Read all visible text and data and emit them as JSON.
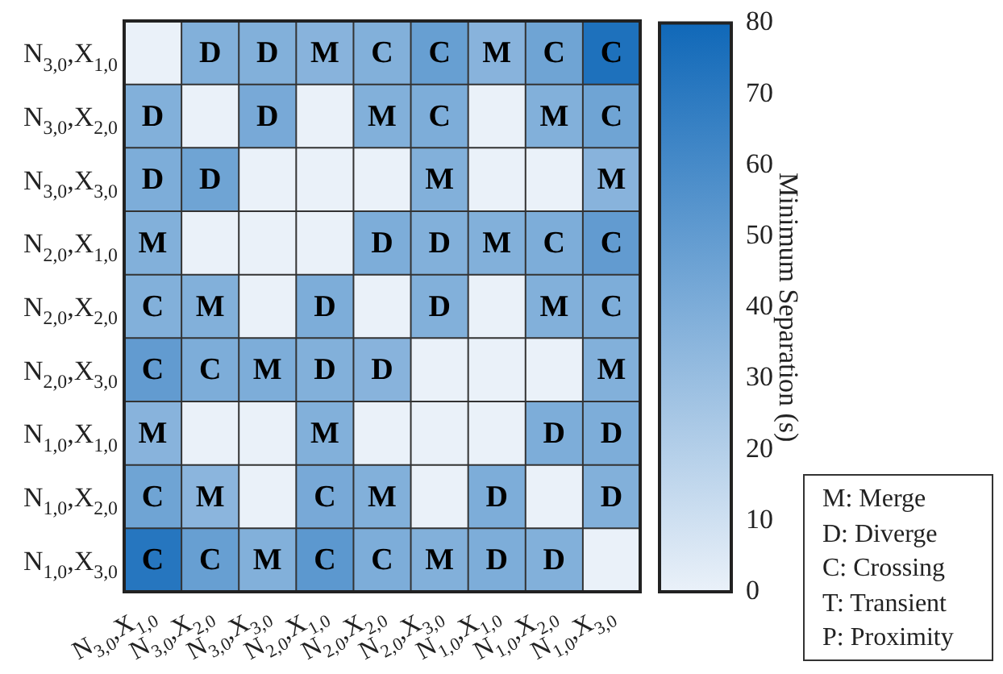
{
  "chart_data": {
    "type": "heatmap",
    "clabel": "Minimum Separation (s)",
    "categories": [
      "N$_{3,0}$,X$_{1,0}$",
      "N$_{3,0}$,X$_{2,0}$",
      "N$_{3,0}$,X$_{3,0}$",
      "N$_{2,0}$,X$_{1,0}$",
      "N$_{2,0}$,X$_{2,0}$",
      "N$_{2,0}$,X$_{3,0}$",
      "N$_{1,0}$,X$_{1,0}$",
      "N$_{1,0}$,X$_{2,0}$",
      "N$_{1,0}$,X$_{3,0}$"
    ],
    "y_categories": [
      "N$_{3,0}$,X$_{1,0}$",
      "N$_{3,0}$,X$_{2,0}$",
      "N$_{3,0}$,X$_{3,0}$",
      "N$_{2,0}$,X$_{1,0}$",
      "N$_{2,0}$,X$_{2,0}$",
      "N$_{2,0}$,X$_{3,0}$",
      "N$_{1,0}$,X$_{1,0}$",
      "N$_{1,0}$,X$_{2,0}$",
      "N$_{1,0}$,X$_{3,0}$"
    ],
    "cells": [
      [
        0,
        38,
        38,
        36,
        38,
        48,
        36,
        45,
        75
      ],
      [
        38,
        0,
        42,
        0,
        38,
        40,
        0,
        38,
        45
      ],
      [
        40,
        45,
        0,
        0,
        0,
        38,
        0,
        0,
        36
      ],
      [
        38,
        0,
        0,
        0,
        40,
        38,
        38,
        40,
        50
      ],
      [
        38,
        38,
        0,
        40,
        0,
        38,
        0,
        38,
        40
      ],
      [
        50,
        40,
        40,
        38,
        36,
        0,
        0,
        0,
        38
      ],
      [
        36,
        0,
        0,
        38,
        0,
        0,
        0,
        40,
        40
      ],
      [
        45,
        35,
        0,
        42,
        38,
        0,
        40,
        0,
        38
      ],
      [
        72,
        48,
        38,
        52,
        40,
        38,
        40,
        38,
        0
      ]
    ],
    "cell_labels": [
      [
        null,
        "D",
        "D",
        "M",
        "C",
        "C",
        "M",
        "C",
        "C"
      ],
      [
        "D",
        null,
        "D",
        null,
        "M",
        "C",
        null,
        "M",
        "C"
      ],
      [
        "D",
        "D",
        null,
        null,
        null,
        "M",
        null,
        null,
        "M"
      ],
      [
        "M",
        null,
        null,
        null,
        "D",
        "D",
        "M",
        "C",
        "C"
      ],
      [
        "C",
        "M",
        null,
        "D",
        null,
        "D",
        null,
        "M",
        "C"
      ],
      [
        "C",
        "C",
        "M",
        "D",
        "D",
        null,
        null,
        null,
        "M"
      ],
      [
        "M",
        null,
        null,
        "M",
        null,
        null,
        null,
        "D",
        "D"
      ],
      [
        "C",
        "M",
        null,
        "C",
        "M",
        null,
        "D",
        null,
        "D"
      ],
      [
        "C",
        "C",
        "M",
        "C",
        "C",
        "M",
        "D",
        "D",
        null
      ]
    ],
    "grid": true,
    "clim": [
      0,
      80
    ],
    "cticks": [
      0,
      10,
      20,
      30,
      40,
      50,
      60,
      70,
      80
    ],
    "annotations": [
      "M: Merge",
      "D: Diverge",
      "C: Crossing",
      "T: Transient",
      "P: Proximity"
    ]
  }
}
